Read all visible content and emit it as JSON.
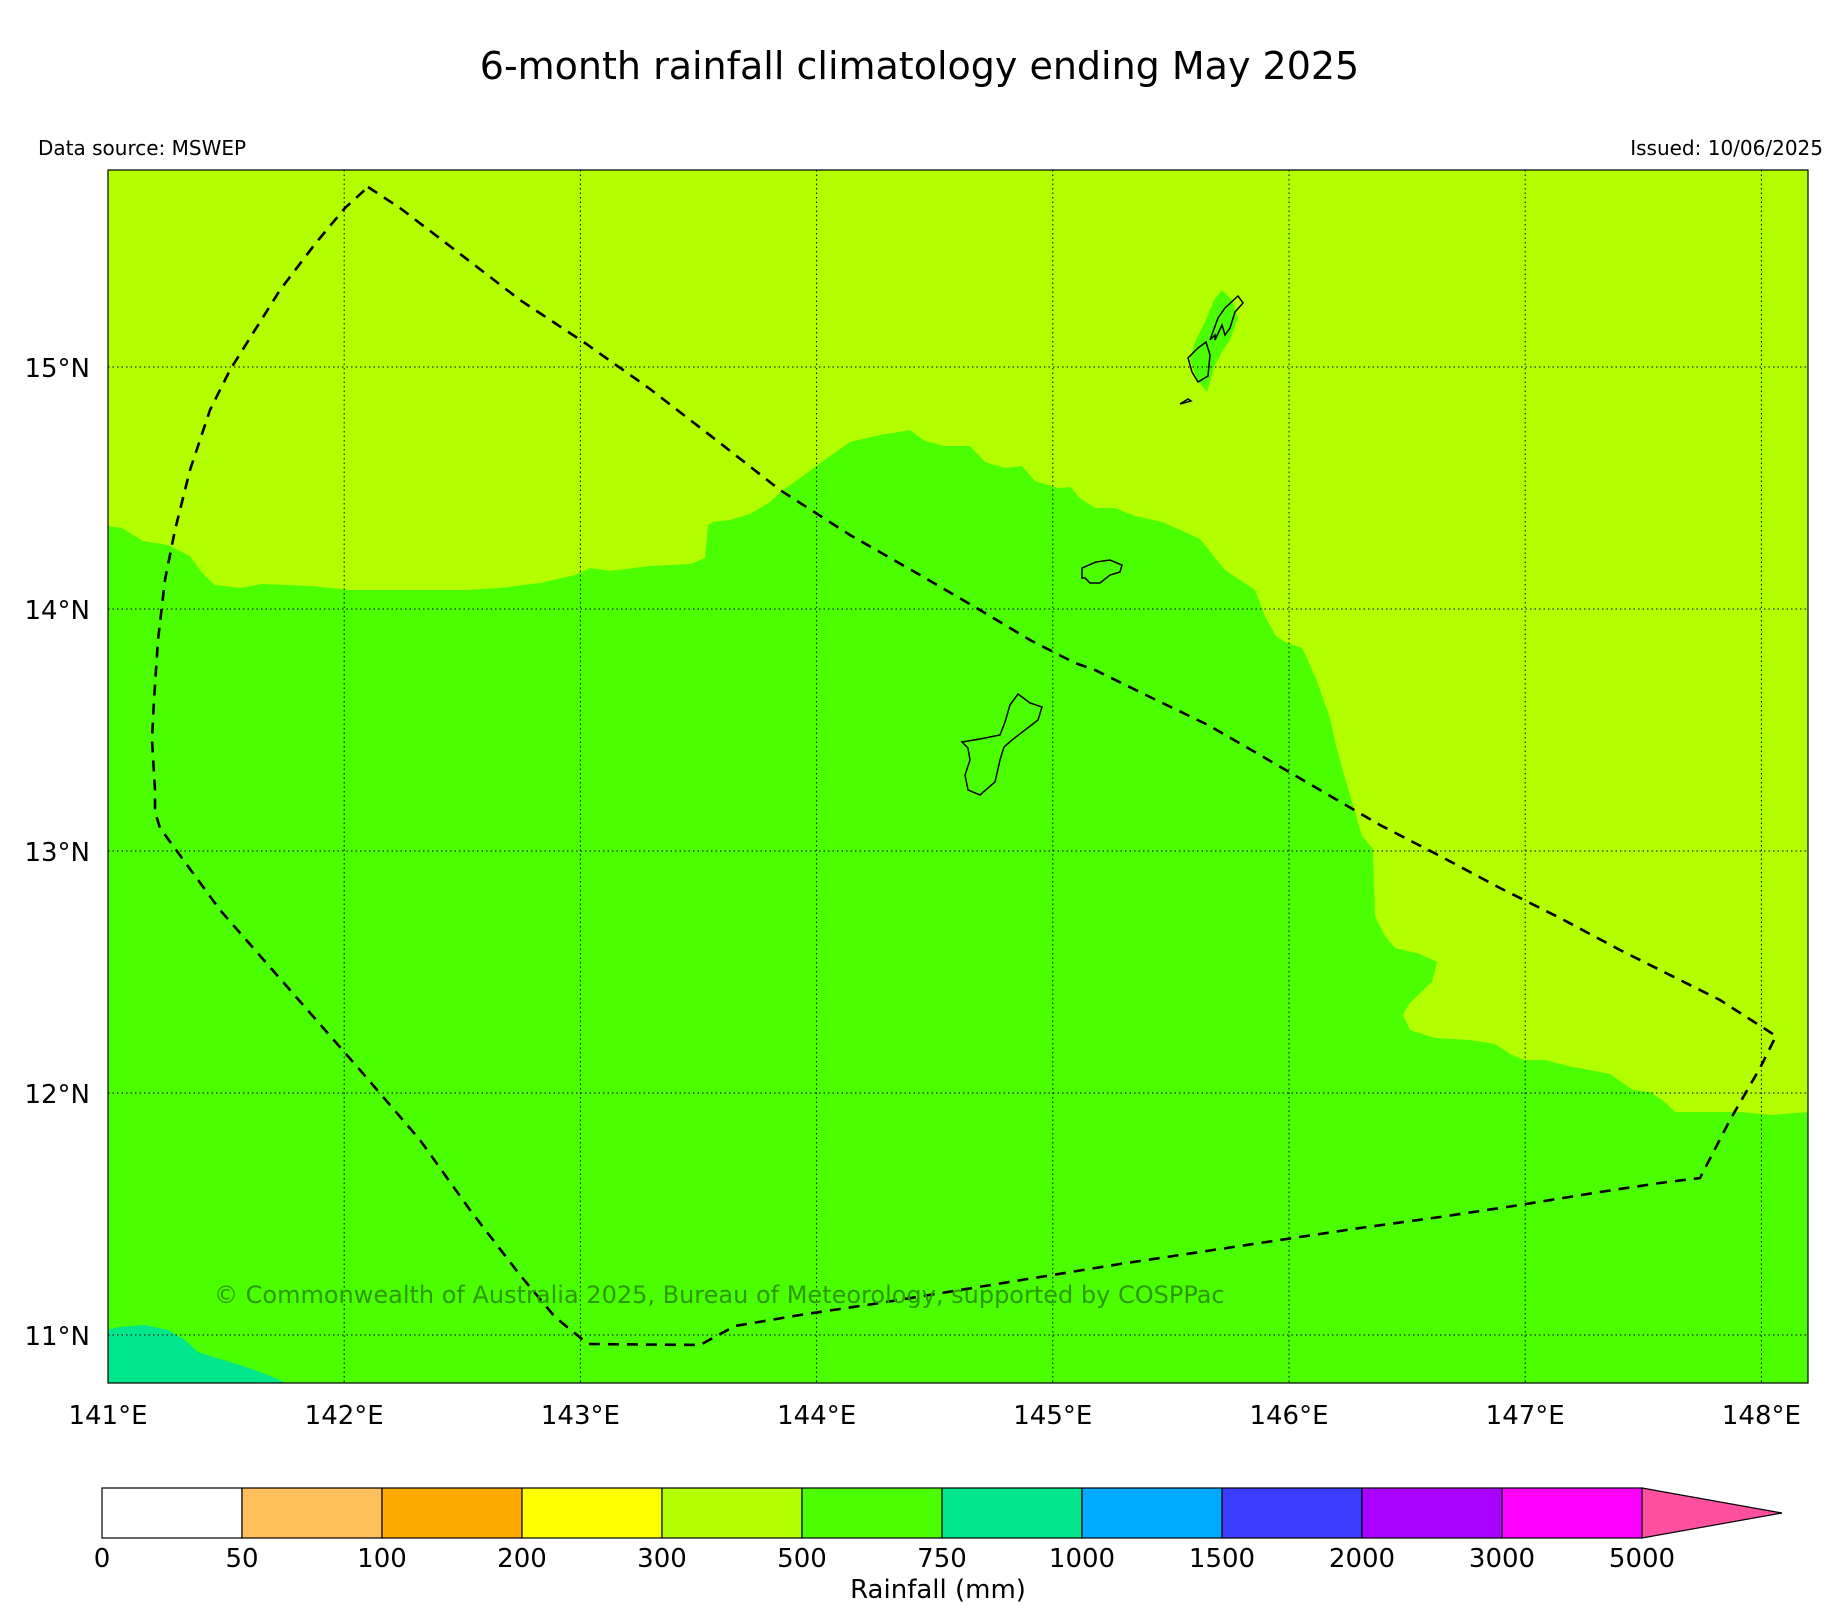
{
  "title": "6-month rainfall climatology ending May 2025",
  "data_source": "Data source: MSWEP",
  "issued": "Issued: 10/06/2025",
  "copyright": "© Commonwealth of Australia 2025, Bureau of Meteorology, supported by COSPPac",
  "map": {
    "lon_range": [
      141.0,
      148.2
    ],
    "lat_range": [
      10.8,
      15.8
    ],
    "lon_ticks": [
      {
        "value": 141,
        "label": "141°E"
      },
      {
        "value": 142,
        "label": "142°E"
      },
      {
        "value": 143,
        "label": "143°E"
      },
      {
        "value": 144,
        "label": "144°E"
      },
      {
        "value": 145,
        "label": "145°E"
      },
      {
        "value": 146,
        "label": "146°E"
      },
      {
        "value": 147,
        "label": "147°E"
      },
      {
        "value": 148,
        "label": "148°E"
      }
    ],
    "lat_ticks": [
      {
        "value": 11,
        "label": "11°N"
      },
      {
        "value": 12,
        "label": "12°N"
      },
      {
        "value": 13,
        "label": "13°N"
      },
      {
        "value": 14,
        "label": "14°N"
      },
      {
        "value": 15,
        "label": "15°N"
      }
    ],
    "grid": true,
    "colors": {
      "band_300_500": "#b3ff00",
      "band_500_750": "#4cff00",
      "band_750_1000": "#00e68c"
    }
  },
  "colorbar": {
    "label": "Rainfall (mm)",
    "ticks": [
      "0",
      "50",
      "100",
      "200",
      "300",
      "500",
      "750",
      "1000",
      "1500",
      "2000",
      "3000",
      "5000"
    ],
    "colors": [
      "#ffffff",
      "#ffbf5a",
      "#ffaa00",
      "#ffff00",
      "#b3ff00",
      "#4cff00",
      "#00e68c",
      "#00aaff",
      "#3c3cff",
      "#aa00ff",
      "#ff00ff"
    ],
    "extend_color": "#ff50a0"
  }
}
